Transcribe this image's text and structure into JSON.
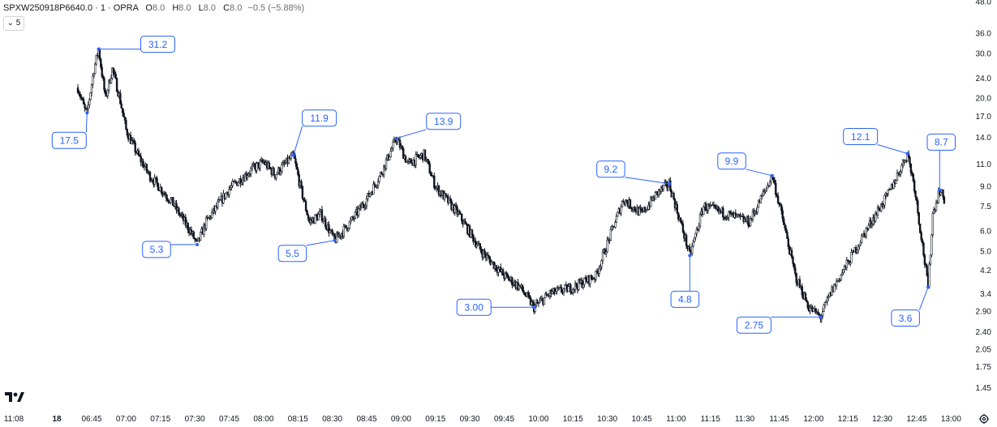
{
  "header": {
    "symbol": "SPXW250918P6640.0 · 1 · OPRA",
    "o_label": "O",
    "o_val": "8.0",
    "h_label": "H",
    "h_val": "8.0",
    "l_label": "L",
    "l_val": "8.0",
    "c_label": "C",
    "c_val": "8.0",
    "change": "−0.5 (−5.88%)"
  },
  "collapse_label": "5",
  "chart_data": {
    "type": "candlestick",
    "y_scale": "log",
    "ylim": [
      1.35,
      48.0
    ],
    "y_ticks": [
      "48.0",
      "36.0",
      "30.0",
      "24.0",
      "20.0",
      "17.0",
      "14.0",
      "11.0",
      "9.0",
      "7.5",
      "6.0",
      "5.0",
      "4.2",
      "3.4",
      "2.90",
      "2.40",
      "2.05",
      "1.75",
      "1.45"
    ],
    "x_ticks": [
      "11:08",
      "18",
      "06:45",
      "07:00",
      "07:15",
      "07:30",
      "07:45",
      "08:00",
      "08:15",
      "08:30",
      "08:45",
      "09:00",
      "09:15",
      "09:30",
      "09:45",
      "10:00",
      "10:15",
      "10:30",
      "10:45",
      "11:00",
      "11:15",
      "11:30",
      "11:45",
      "12:00",
      "12:15",
      "12:30",
      "12:45",
      "13:00"
    ],
    "price_path": [
      {
        "t": "06:39",
        "v": 22.0
      },
      {
        "t": "06:42",
        "v": 18.0
      },
      {
        "t": "06:43",
        "v": 17.5
      },
      {
        "t": "06:46",
        "v": 26.0
      },
      {
        "t": "06:48",
        "v": 31.2
      },
      {
        "t": "06:51",
        "v": 20.0
      },
      {
        "t": "06:54",
        "v": 26.0
      },
      {
        "t": "06:57",
        "v": 20.5
      },
      {
        "t": "07:00",
        "v": 15.0
      },
      {
        "t": "07:05",
        "v": 12.0
      },
      {
        "t": "07:10",
        "v": 10.0
      },
      {
        "t": "07:20",
        "v": 7.8
      },
      {
        "t": "07:28",
        "v": 6.0
      },
      {
        "t": "07:31",
        "v": 5.3
      },
      {
        "t": "07:35",
        "v": 6.5
      },
      {
        "t": "07:45",
        "v": 8.8
      },
      {
        "t": "07:55",
        "v": 10.5
      },
      {
        "t": "08:00",
        "v": 11.2
      },
      {
        "t": "08:05",
        "v": 10.0
      },
      {
        "t": "08:13",
        "v": 11.9
      },
      {
        "t": "08:16",
        "v": 9.0
      },
      {
        "t": "08:20",
        "v": 6.5
      },
      {
        "t": "08:25",
        "v": 7.0
      },
      {
        "t": "08:31",
        "v": 5.5
      },
      {
        "t": "08:38",
        "v": 6.5
      },
      {
        "t": "08:45",
        "v": 8.0
      },
      {
        "t": "08:51",
        "v": 10.0
      },
      {
        "t": "08:58",
        "v": 13.9
      },
      {
        "t": "09:03",
        "v": 11.0
      },
      {
        "t": "09:10",
        "v": 12.0
      },
      {
        "t": "09:15",
        "v": 9.0
      },
      {
        "t": "09:25",
        "v": 7.0
      },
      {
        "t": "09:35",
        "v": 5.0
      },
      {
        "t": "09:45",
        "v": 4.0
      },
      {
        "t": "09:52",
        "v": 3.6
      },
      {
        "t": "09:58",
        "v": 3.0
      },
      {
        "t": "10:05",
        "v": 3.4
      },
      {
        "t": "10:15",
        "v": 3.6
      },
      {
        "t": "10:25",
        "v": 4.0
      },
      {
        "t": "10:32",
        "v": 6.0
      },
      {
        "t": "10:37",
        "v": 8.0
      },
      {
        "t": "10:45",
        "v": 7.0
      },
      {
        "t": "10:52",
        "v": 8.5
      },
      {
        "t": "10:57",
        "v": 9.2
      },
      {
        "t": "11:03",
        "v": 6.0
      },
      {
        "t": "11:06",
        "v": 4.8
      },
      {
        "t": "11:12",
        "v": 7.5
      },
      {
        "t": "11:22",
        "v": 7.0
      },
      {
        "t": "11:32",
        "v": 6.5
      },
      {
        "t": "11:42",
        "v": 9.9
      },
      {
        "t": "11:46",
        "v": 7.0
      },
      {
        "t": "11:52",
        "v": 4.0
      },
      {
        "t": "11:58",
        "v": 3.0
      },
      {
        "t": "12:03",
        "v": 2.75
      },
      {
        "t": "12:08",
        "v": 3.5
      },
      {
        "t": "12:15",
        "v": 4.5
      },
      {
        "t": "12:25",
        "v": 6.5
      },
      {
        "t": "12:33",
        "v": 8.5
      },
      {
        "t": "12:41",
        "v": 12.1
      },
      {
        "t": "12:44",
        "v": 9.0
      },
      {
        "t": "12:50",
        "v": 3.6
      },
      {
        "t": "12:52",
        "v": 7.0
      },
      {
        "t": "12:55",
        "v": 8.7
      },
      {
        "t": "12:57",
        "v": 8.0
      }
    ],
    "annotations": [
      {
        "label": "17.5",
        "t": "06:43",
        "v": 17.5
      },
      {
        "label": "31.2",
        "t": "06:48",
        "v": 31.2
      },
      {
        "label": "5.3",
        "t": "07:31",
        "v": 5.3
      },
      {
        "label": "11.9",
        "t": "08:13",
        "v": 11.9
      },
      {
        "label": "5.5",
        "t": "08:31",
        "v": 5.5
      },
      {
        "label": "13.9",
        "t": "08:58",
        "v": 13.9
      },
      {
        "label": "3.00",
        "t": "09:58",
        "v": 3.0
      },
      {
        "label": "9.2",
        "t": "10:57",
        "v": 9.2
      },
      {
        "label": "4.8",
        "t": "11:06",
        "v": 4.8
      },
      {
        "label": "9.9",
        "t": "11:42",
        "v": 9.9
      },
      {
        "label": "2.75",
        "t": "12:03",
        "v": 2.75
      },
      {
        "label": "12.1",
        "t": "12:41",
        "v": 12.1
      },
      {
        "label": "3.6",
        "t": "12:50",
        "v": 3.6
      },
      {
        "label": "8.7",
        "t": "12:55",
        "v": 8.7
      }
    ],
    "colors": {
      "candle": "#131722",
      "annotation": "#2962ff"
    }
  }
}
